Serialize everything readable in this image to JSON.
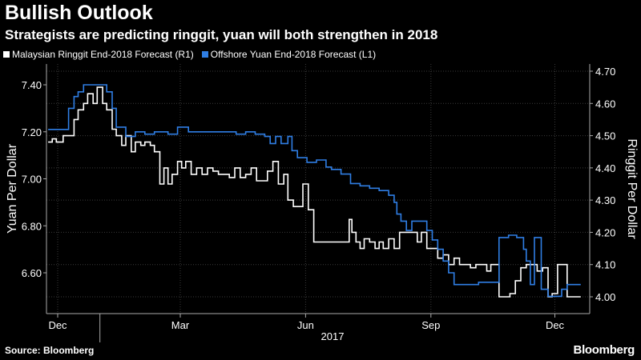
{
  "header": {
    "title": "Bullish Outlook",
    "subtitle": "Strategists are predicting ringgit, yuan will both strengthen in 2018"
  },
  "footer": {
    "source": "Source: Bloomberg",
    "logo": "Bloomberg"
  },
  "chart_data": {
    "type": "line",
    "title": "Bullish Outlook",
    "subtitle": "Strategists are predicting ringgit, yuan will both strengthen in 2018",
    "x_tick_labels": [
      "Dec",
      "Mar",
      "Jun",
      "Sep",
      "Dec"
    ],
    "x_year_label": "2017",
    "left_axis": {
      "label": "Yuan Per Dollar",
      "ylim": [
        6.5,
        7.45
      ],
      "ticks": [
        "6.60",
        "6.80",
        "7.00",
        "7.20",
        "7.40"
      ],
      "tick_values": [
        6.6,
        6.8,
        7.0,
        7.2,
        7.4
      ]
    },
    "right_axis": {
      "label": "Ringgit Per Dollar",
      "ylim": [
        3.975,
        4.7
      ],
      "ticks": [
        "4.00",
        "4.10",
        "4.20",
        "4.30",
        "4.40",
        "4.50",
        "4.60",
        "4.70"
      ],
      "tick_values": [
        4.0,
        4.1,
        4.2,
        4.3,
        4.4,
        4.5,
        4.6,
        4.7
      ]
    },
    "legend_position": "top-left",
    "grid": true,
    "series": [
      {
        "name": "Malaysian Ringgit End-2018 Forecast (R1)",
        "axis": "right",
        "color": "#ffffff",
        "points": [
          [
            "2016-11-24",
            4.48
          ],
          [
            "2016-11-27",
            4.49
          ],
          [
            "2016-11-30",
            4.48
          ],
          [
            "2016-12-05",
            4.5
          ],
          [
            "2016-12-09",
            4.5
          ],
          [
            "2016-12-13",
            4.55
          ],
          [
            "2016-12-16",
            4.58
          ],
          [
            "2016-12-20",
            4.6
          ],
          [
            "2016-12-23",
            4.63
          ],
          [
            "2016-12-27",
            4.6
          ],
          [
            "2016-12-30",
            4.65
          ],
          [
            "2017-01-03",
            4.6
          ],
          [
            "2017-01-06",
            4.58
          ],
          [
            "2017-01-10",
            4.52
          ],
          [
            "2017-01-13",
            4.5
          ],
          [
            "2017-01-17",
            4.47
          ],
          [
            "2017-01-20",
            4.5
          ],
          [
            "2017-01-24",
            4.45
          ],
          [
            "2017-01-27",
            4.48
          ],
          [
            "2017-01-31",
            4.47
          ],
          [
            "2017-02-03",
            4.48
          ],
          [
            "2017-02-07",
            4.47
          ],
          [
            "2017-02-10",
            4.45
          ],
          [
            "2017-02-14",
            4.35
          ],
          [
            "2017-02-17",
            4.4
          ],
          [
            "2017-02-20",
            4.35
          ],
          [
            "2017-02-23",
            4.38
          ],
          [
            "2017-02-27",
            4.42
          ],
          [
            "2017-03-02",
            4.4
          ],
          [
            "2017-03-05",
            4.42
          ],
          [
            "2017-03-09",
            4.38
          ],
          [
            "2017-03-13",
            4.4
          ],
          [
            "2017-03-17",
            4.38
          ],
          [
            "2017-03-21",
            4.4
          ],
          [
            "2017-03-25",
            4.39
          ],
          [
            "2017-03-29",
            4.38
          ],
          [
            "2017-04-02",
            4.38
          ],
          [
            "2017-04-06",
            4.37
          ],
          [
            "2017-04-10",
            4.4
          ],
          [
            "2017-04-14",
            4.37
          ],
          [
            "2017-04-18",
            4.38
          ],
          [
            "2017-04-22",
            4.4
          ],
          [
            "2017-04-26",
            4.36
          ],
          [
            "2017-04-30",
            4.36
          ],
          [
            "2017-05-04",
            4.39
          ],
          [
            "2017-05-08",
            4.42
          ],
          [
            "2017-05-12",
            4.35
          ],
          [
            "2017-05-16",
            4.38
          ],
          [
            "2017-05-19",
            4.3
          ],
          [
            "2017-05-23",
            4.28
          ],
          [
            "2017-05-26",
            4.28
          ],
          [
            "2017-05-30",
            4.35
          ],
          [
            "2017-06-03",
            4.27
          ],
          [
            "2017-06-07",
            4.17
          ],
          [
            "2017-06-13",
            4.17
          ],
          [
            "2017-06-20",
            4.17
          ],
          [
            "2017-06-27",
            4.17
          ],
          [
            "2017-07-01",
            4.17
          ],
          [
            "2017-07-03",
            4.24
          ],
          [
            "2017-07-05",
            4.2
          ],
          [
            "2017-07-08",
            4.17
          ],
          [
            "2017-07-11",
            4.15
          ],
          [
            "2017-07-14",
            4.18
          ],
          [
            "2017-07-18",
            4.17
          ],
          [
            "2017-07-22",
            4.15
          ],
          [
            "2017-07-25",
            4.17
          ],
          [
            "2017-07-28",
            4.15
          ],
          [
            "2017-08-01",
            4.18
          ],
          [
            "2017-08-05",
            4.15
          ],
          [
            "2017-08-09",
            4.2
          ],
          [
            "2017-08-14",
            4.2
          ],
          [
            "2017-08-18",
            4.2
          ],
          [
            "2017-08-22",
            4.17
          ],
          [
            "2017-08-25",
            4.2
          ],
          [
            "2017-08-29",
            4.15
          ],
          [
            "2017-09-02",
            4.15
          ],
          [
            "2017-09-06",
            4.12
          ],
          [
            "2017-09-10",
            4.13
          ],
          [
            "2017-09-14",
            4.1
          ],
          [
            "2017-09-18",
            4.12
          ],
          [
            "2017-09-22",
            4.1
          ],
          [
            "2017-09-26",
            4.1
          ],
          [
            "2017-09-30",
            4.09
          ],
          [
            "2017-10-04",
            4.1
          ],
          [
            "2017-10-08",
            4.1
          ],
          [
            "2017-10-12",
            4.08
          ],
          [
            "2017-10-15",
            4.1
          ],
          [
            "2017-10-18",
            4.1
          ],
          [
            "2017-10-21",
            4.0
          ],
          [
            "2017-10-25",
            4.0
          ],
          [
            "2017-10-29",
            4.01
          ],
          [
            "2017-11-02",
            4.05
          ],
          [
            "2017-11-06",
            4.09
          ],
          [
            "2017-11-10",
            4.1
          ],
          [
            "2017-11-14",
            4.1
          ],
          [
            "2017-11-18",
            4.08
          ],
          [
            "2017-11-22",
            4.09
          ],
          [
            "2017-11-26",
            4.0
          ],
          [
            "2017-11-29",
            4.01
          ],
          [
            "2017-12-03",
            4.1
          ],
          [
            "2017-12-06",
            4.1
          ],
          [
            "2017-12-10",
            4.0
          ],
          [
            "2017-12-20",
            4.0
          ]
        ]
      },
      {
        "name": "Offshore Yuan End-2018 Forecast (L1)",
        "axis": "left",
        "color": "#2f7ee4",
        "points": [
          [
            "2016-11-24",
            7.21
          ],
          [
            "2016-12-07",
            7.21
          ],
          [
            "2016-12-09",
            7.3
          ],
          [
            "2016-12-13",
            7.35
          ],
          [
            "2016-12-16",
            7.37
          ],
          [
            "2016-12-20",
            7.4
          ],
          [
            "2017-01-03",
            7.4
          ],
          [
            "2017-01-06",
            7.37
          ],
          [
            "2017-01-10",
            7.3
          ],
          [
            "2017-01-13",
            7.22
          ],
          [
            "2017-01-20",
            7.18
          ],
          [
            "2017-01-27",
            7.2
          ],
          [
            "2017-02-03",
            7.19
          ],
          [
            "2017-02-10",
            7.2
          ],
          [
            "2017-02-20",
            7.19
          ],
          [
            "2017-02-27",
            7.22
          ],
          [
            "2017-03-07",
            7.2
          ],
          [
            "2017-03-14",
            7.2
          ],
          [
            "2017-03-21",
            7.2
          ],
          [
            "2017-03-28",
            7.2
          ],
          [
            "2017-04-04",
            7.2
          ],
          [
            "2017-04-11",
            7.19
          ],
          [
            "2017-04-18",
            7.2
          ],
          [
            "2017-04-25",
            7.19
          ],
          [
            "2017-05-02",
            7.18
          ],
          [
            "2017-05-06",
            7.15
          ],
          [
            "2017-05-10",
            7.18
          ],
          [
            "2017-05-14",
            7.15
          ],
          [
            "2017-05-19",
            7.18
          ],
          [
            "2017-05-22",
            7.12
          ],
          [
            "2017-05-26",
            7.09
          ],
          [
            "2017-06-02",
            7.07
          ],
          [
            "2017-06-09",
            7.08
          ],
          [
            "2017-06-16",
            7.05
          ],
          [
            "2017-06-20",
            7.04
          ],
          [
            "2017-06-27",
            7.02
          ],
          [
            "2017-07-04",
            6.98
          ],
          [
            "2017-07-11",
            6.97
          ],
          [
            "2017-07-18",
            6.96
          ],
          [
            "2017-07-25",
            6.95
          ],
          [
            "2017-08-01",
            6.93
          ],
          [
            "2017-08-05",
            6.9
          ],
          [
            "2017-08-07",
            6.85
          ],
          [
            "2017-08-10",
            6.82
          ],
          [
            "2017-08-14",
            6.78
          ],
          [
            "2017-08-18",
            6.82
          ],
          [
            "2017-08-25",
            6.82
          ],
          [
            "2017-08-29",
            6.78
          ],
          [
            "2017-09-02",
            6.74
          ],
          [
            "2017-09-06",
            6.7
          ],
          [
            "2017-09-10",
            6.65
          ],
          [
            "2017-09-14",
            6.6
          ],
          [
            "2017-09-18",
            6.55
          ],
          [
            "2017-09-22",
            6.55
          ],
          [
            "2017-09-29",
            6.55
          ],
          [
            "2017-10-06",
            6.56
          ],
          [
            "2017-10-13",
            6.56
          ],
          [
            "2017-10-18",
            6.56
          ],
          [
            "2017-10-21",
            6.75
          ],
          [
            "2017-10-28",
            6.76
          ],
          [
            "2017-11-03",
            6.75
          ],
          [
            "2017-11-08",
            6.7
          ],
          [
            "2017-11-10",
            6.65
          ],
          [
            "2017-11-13",
            6.55
          ],
          [
            "2017-11-16",
            6.75
          ],
          [
            "2017-11-19",
            6.75
          ],
          [
            "2017-11-21",
            6.53
          ],
          [
            "2017-11-26",
            6.5
          ],
          [
            "2017-12-02",
            6.5
          ],
          [
            "2017-12-06",
            6.53
          ],
          [
            "2017-12-10",
            6.55
          ],
          [
            "2017-12-20",
            6.55
          ]
        ]
      }
    ]
  }
}
